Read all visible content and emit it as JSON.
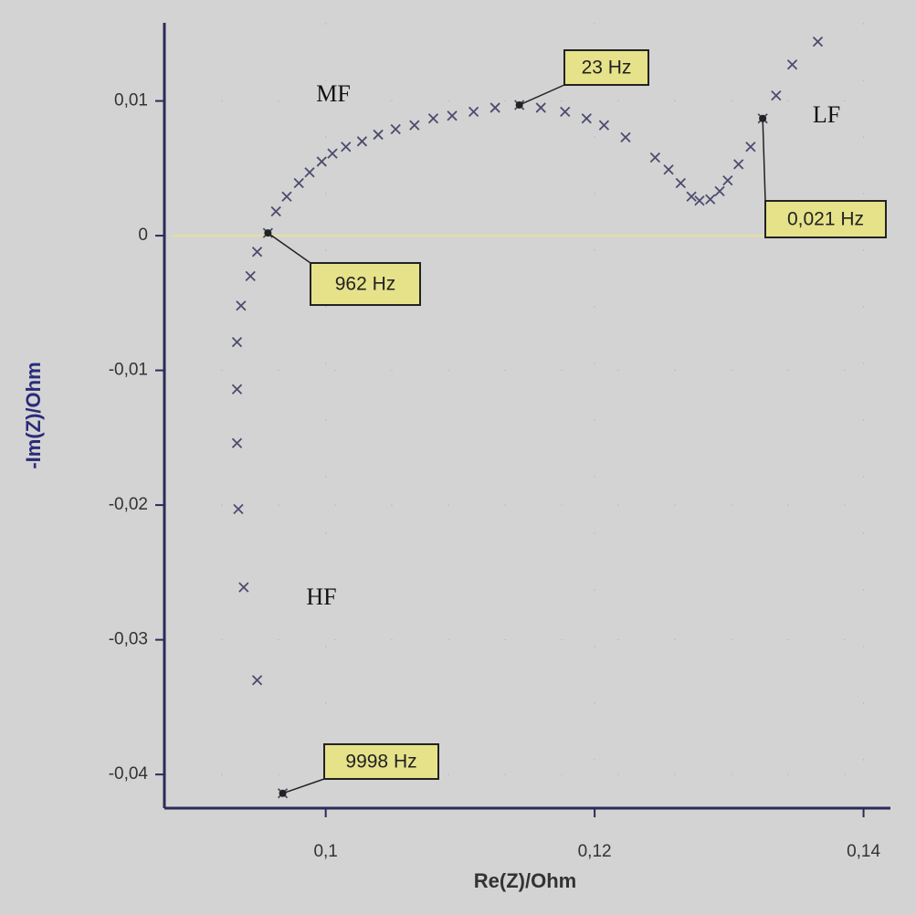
{
  "chart_data": {
    "type": "scatter",
    "x_label": "Re(Z)/Ohm",
    "y_label": "-Im(Z)/Ohm",
    "x": [
      0.0968,
      0.0949,
      0.0939,
      0.0935,
      0.0934,
      0.0934,
      0.0934,
      0.0937,
      0.0944,
      0.0949,
      0.0957,
      0.0963,
      0.0971,
      0.098,
      0.0988,
      0.0997,
      0.1005,
      0.1015,
      0.1027,
      0.1039,
      0.1052,
      0.1066,
      0.108,
      0.1094,
      0.111,
      0.1126,
      0.1144,
      0.116,
      0.1178,
      0.1194,
      0.1207,
      0.1223,
      0.1245,
      0.1255,
      0.1264,
      0.1272,
      0.1278,
      0.1286,
      0.1293,
      0.1299,
      0.1307,
      0.1316,
      0.1325,
      0.1335,
      0.1347,
      0.1366
    ],
    "values": [
      -0.0414,
      -0.033,
      -0.0261,
      -0.0203,
      -0.0154,
      -0.0114,
      -0.0079,
      -0.0052,
      -0.003,
      -0.0012,
      0.0002,
      0.0018,
      0.0029,
      0.0039,
      0.0047,
      0.0055,
      0.0061,
      0.0066,
      0.007,
      0.0075,
      0.0079,
      0.0082,
      0.0087,
      0.0089,
      0.0092,
      0.0095,
      0.0097,
      0.0095,
      0.0092,
      0.0087,
      0.0082,
      0.0073,
      0.0058,
      0.0049,
      0.0039,
      0.0029,
      0.0026,
      0.0027,
      0.0033,
      0.0041,
      0.0053,
      0.0066,
      0.0087,
      0.0104,
      0.0127,
      0.0144
    ],
    "color": "#4b4b6e",
    "xlim": [
      0.088,
      0.142
    ],
    "ylim": [
      -0.0425,
      0.0158
    ],
    "xticks": [
      {
        "value": 0.1,
        "label": "0,1"
      },
      {
        "value": 0.12,
        "label": "0,12"
      },
      {
        "value": 0.14,
        "label": "0,14"
      }
    ],
    "yticks": [
      {
        "value": 0.01,
        "label": "0,01"
      },
      0,
      {
        "value": -0.01,
        "label": "-0,01"
      },
      {
        "value": -0.02,
        "label": "-0,02"
      },
      {
        "value": -0.03,
        "label": "-0,03"
      },
      {
        "value": -0.04,
        "label": "-0,04"
      }
    ],
    "grid": true,
    "annotations": [
      "MF",
      "HF",
      "LF"
    ],
    "callouts": [
      "23 Hz",
      "962 Hz",
      "0,021 Hz",
      "9998 Hz"
    ]
  }
}
